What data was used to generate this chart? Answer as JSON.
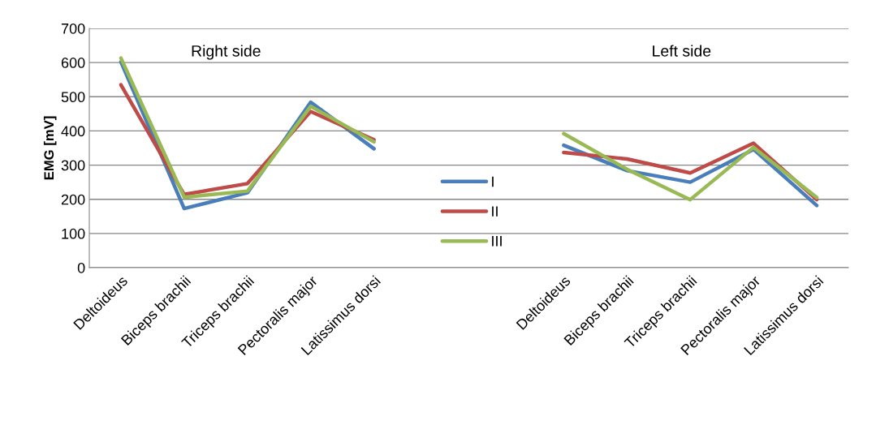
{
  "chart_data": {
    "type": "line",
    "ylabel": "EMG [mV]",
    "categories": [
      "Deltoideus",
      "Biceps brachii",
      "Triceps brachii",
      "Pectoralis major",
      "Latissimus dorsi",
      null,
      null,
      "Deltoideus",
      "Biceps brachii",
      "Triceps brachii",
      "Pectoralis major",
      "Latissimus dorsi"
    ],
    "series": [
      {
        "name": "I",
        "color": "#4a7ebb",
        "values": [
          602,
          173,
          219,
          484,
          348,
          null,
          null,
          358,
          284,
          250,
          346,
          182
        ]
      },
      {
        "name": "II",
        "color": "#be4b48",
        "values": [
          535,
          214,
          246,
          457,
          374,
          null,
          null,
          337,
          318,
          277,
          364,
          199
        ]
      },
      {
        "name": "III",
        "color": "#98b954",
        "values": [
          613,
          206,
          224,
          472,
          368,
          null,
          null,
          392,
          288,
          199,
          352,
          205
        ]
      }
    ],
    "ylim": [
      0,
      700
    ],
    "yticks": [
      0,
      100,
      200,
      300,
      400,
      500,
      600,
      700
    ],
    "grid": "y",
    "legend": "bottom",
    "marker": "none",
    "line_style": "solid",
    "annotations": [
      "Right side",
      "Left side"
    ]
  }
}
